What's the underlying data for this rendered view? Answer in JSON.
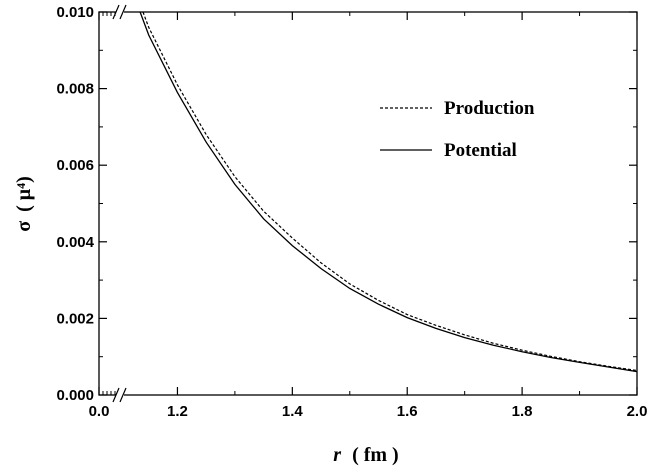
{
  "chart_data": {
    "type": "line",
    "xlabel_var": "r",
    "xlabel_unit": "( fm )",
    "ylabel_var": "σ",
    "ylabel_unit": "( μ⁴)",
    "xlim": [
      0.0,
      2.0
    ],
    "ylim": [
      0.0,
      0.01
    ],
    "x_axis_break": [
      0.05,
      1.1
    ],
    "x_ticks": [
      "0.0",
      "1.2",
      "1.4",
      "1.6",
      "1.8",
      "2.0"
    ],
    "y_ticks": [
      "0.000",
      "0.002",
      "0.004",
      "0.006",
      "0.008",
      "0.010"
    ],
    "legend_position": "upper-right",
    "series": [
      {
        "name": "Production",
        "style": "dashed",
        "x": [
          1.14,
          1.15,
          1.2,
          1.25,
          1.3,
          1.35,
          1.4,
          1.45,
          1.5,
          1.55,
          1.6,
          1.65,
          1.7,
          1.75,
          1.8,
          1.85,
          1.9,
          1.95,
          2.0
        ],
        "y": [
          0.01,
          0.0096,
          0.0081,
          0.0068,
          0.0057,
          0.0048,
          0.0041,
          0.00345,
          0.0029,
          0.00247,
          0.0021,
          0.00182,
          0.00157,
          0.00135,
          0.00117,
          0.00101,
          0.00087,
          0.00075,
          0.00064
        ]
      },
      {
        "name": "Potential",
        "style": "solid",
        "x": [
          1.135,
          1.15,
          1.2,
          1.25,
          1.3,
          1.35,
          1.4,
          1.45,
          1.5,
          1.55,
          1.6,
          1.65,
          1.7,
          1.75,
          1.8,
          1.85,
          1.9,
          1.95,
          2.0
        ],
        "y": [
          0.01,
          0.0094,
          0.0079,
          0.0066,
          0.0055,
          0.0046,
          0.0039,
          0.0033,
          0.00278,
          0.00237,
          0.00202,
          0.00174,
          0.0015,
          0.0013,
          0.00113,
          0.00098,
          0.00085,
          0.00073,
          0.00061
        ]
      }
    ]
  }
}
